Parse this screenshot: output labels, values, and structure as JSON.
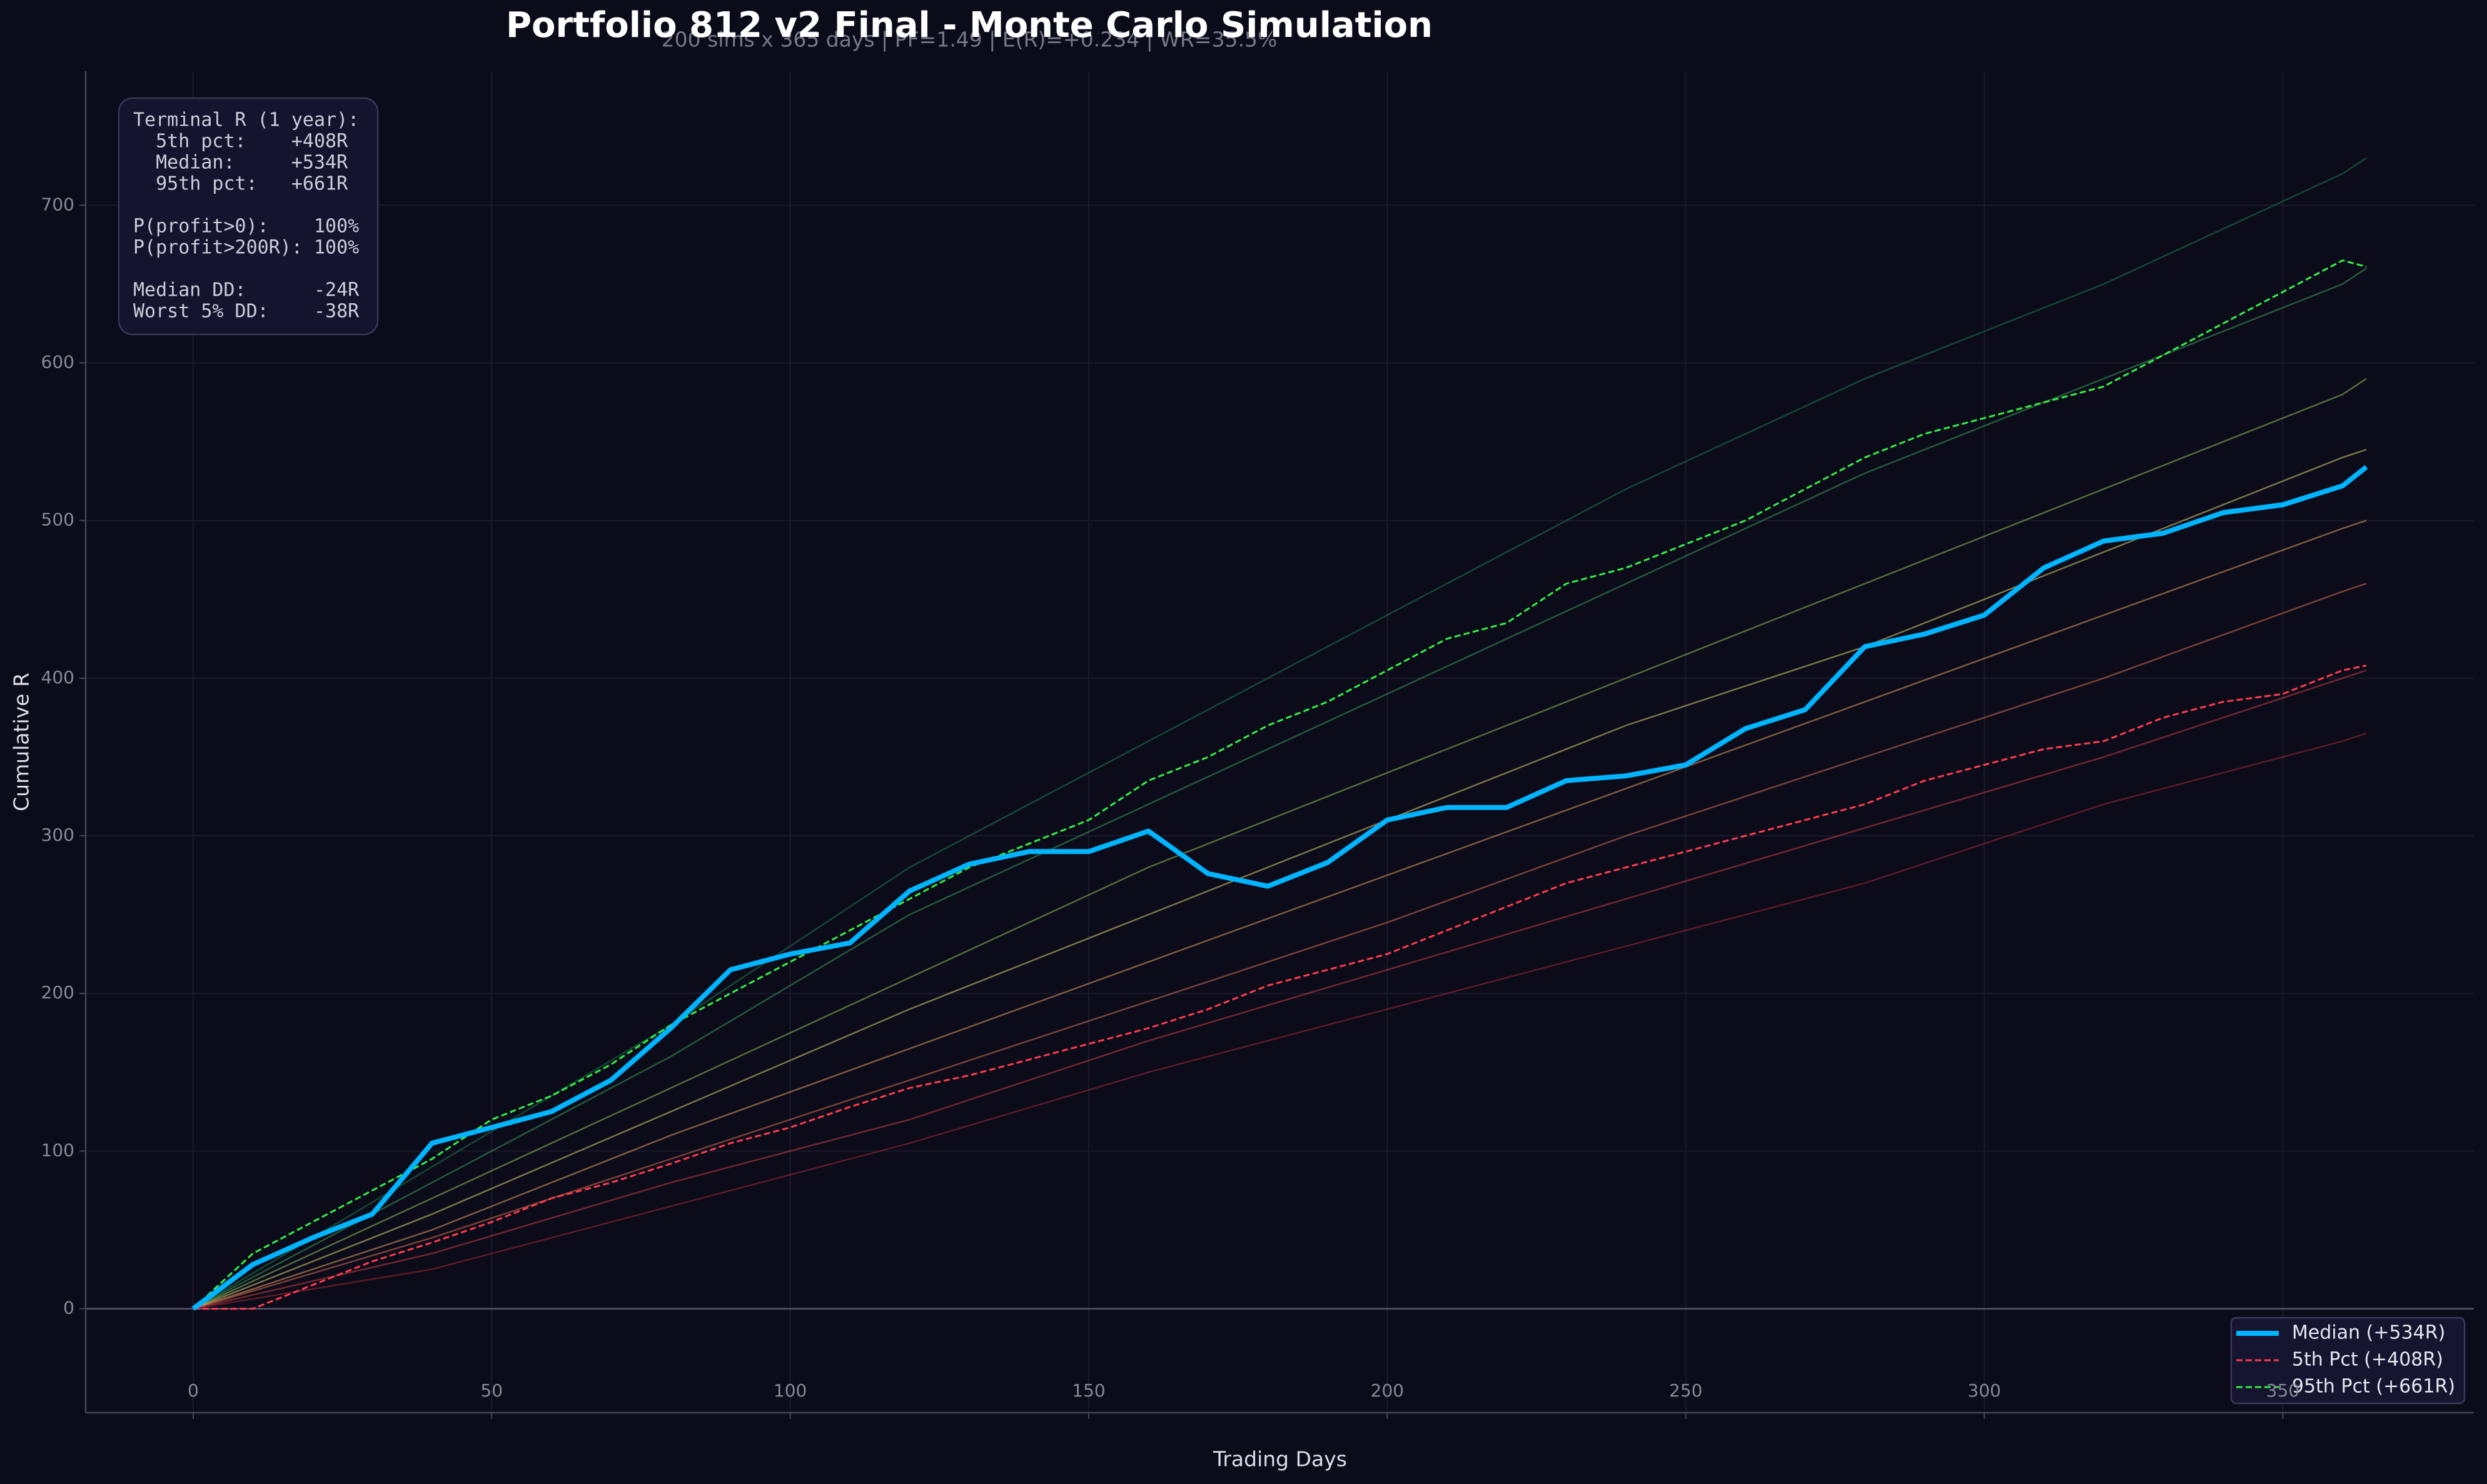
{
  "chart_data": {
    "type": "line",
    "title": "Portfolio 812 v2 Final - Monte Carlo Simulation",
    "subtitle": "200 sims x 365 days | PF=1.49 | E(R)=+0.234 | WR=35.5%",
    "x_label": "Trading Days",
    "y_label": "Cumulative R",
    "xlim": [
      -18,
      382
    ],
    "ylim": [
      -66,
      785
    ],
    "xticks": [
      0,
      50,
      100,
      150,
      200,
      250,
      300,
      350
    ],
    "yticks": [
      0,
      100,
      200,
      300,
      400,
      500,
      600,
      700
    ],
    "grid": true,
    "reference_line": 0,
    "legend": "lower right",
    "x": [
      0,
      10,
      20,
      30,
      40,
      50,
      60,
      70,
      80,
      90,
      100,
      110,
      120,
      130,
      140,
      150,
      160,
      170,
      180,
      190,
      200,
      210,
      220,
      230,
      240,
      250,
      260,
      270,
      280,
      290,
      300,
      310,
      320,
      330,
      340,
      350,
      360,
      364
    ],
    "series": [
      {
        "name": "Median (+534R)",
        "color": "#00b4ff",
        "linestyle": "solid",
        "values": [
          0,
          28,
          45,
          60,
          105,
          115,
          125,
          145,
          178,
          215,
          225,
          232,
          265,
          282,
          290,
          290,
          303,
          276,
          268,
          283,
          310,
          318,
          318,
          335,
          338,
          345,
          368,
          380,
          420,
          428,
          440,
          470,
          487,
          492,
          505,
          510,
          522,
          534
        ]
      },
      {
        "name": "5th Pct (+408R)",
        "color": "#ff3b4e",
        "linestyle": "dashed",
        "values": [
          0,
          0,
          15,
          30,
          42,
          55,
          70,
          80,
          92,
          105,
          115,
          128,
          140,
          148,
          158,
          168,
          178,
          190,
          205,
          215,
          225,
          240,
          255,
          270,
          280,
          290,
          300,
          310,
          320,
          335,
          345,
          355,
          360,
          375,
          385,
          390,
          405,
          408
        ]
      },
      {
        "name": "95th Pct (+661R)",
        "color": "#33ee44",
        "linestyle": "dashed",
        "values": [
          0,
          35,
          55,
          75,
          95,
          120,
          135,
          155,
          180,
          200,
          220,
          240,
          260,
          280,
          295,
          310,
          335,
          350,
          370,
          385,
          405,
          425,
          435,
          460,
          470,
          485,
          500,
          520,
          540,
          555,
          565,
          575,
          585,
          605,
          625,
          645,
          665,
          661
        ]
      }
    ],
    "simulations": {
      "x": [
        0,
        40,
        80,
        120,
        160,
        200,
        240,
        280,
        320,
        360,
        364
      ],
      "paths": [
        {
          "color": "#1f7a4a",
          "values": [
            0,
            90,
            180,
            280,
            360,
            440,
            520,
            590,
            650,
            720,
            730
          ]
        },
        {
          "color": "#3d9a55",
          "values": [
            0,
            80,
            160,
            250,
            320,
            390,
            460,
            530,
            590,
            650,
            660
          ]
        },
        {
          "color": "#8fbf5a",
          "values": [
            0,
            70,
            140,
            210,
            280,
            340,
            400,
            460,
            520,
            580,
            590
          ]
        },
        {
          "color": "#d8d070",
          "values": [
            0,
            60,
            125,
            190,
            250,
            310,
            370,
            420,
            480,
            540,
            545
          ]
        },
        {
          "color": "#e0a060",
          "values": [
            0,
            50,
            110,
            165,
            220,
            275,
            330,
            385,
            440,
            495,
            500
          ]
        },
        {
          "color": "#d97050",
          "values": [
            0,
            45,
            95,
            145,
            195,
            245,
            300,
            350,
            400,
            455,
            460
          ]
        },
        {
          "color": "#c84040",
          "values": [
            0,
            35,
            80,
            120,
            170,
            215,
            260,
            305,
            350,
            400,
            405
          ]
        },
        {
          "color": "#a02a35",
          "values": [
            0,
            25,
            65,
            105,
            150,
            190,
            230,
            270,
            320,
            360,
            365
          ]
        }
      ]
    },
    "stats_box": [
      [
        "Terminal R (1 year):",
        "  5th pct:    +408R",
        "  Median:     +534R",
        "  95th pct:   +661R"
      ],
      [
        "P(profit>0):    100%",
        "P(profit>200R): 100%"
      ],
      [
        "Median DD:      -24R",
        "Worst 5% DD:    -38R"
      ]
    ]
  }
}
